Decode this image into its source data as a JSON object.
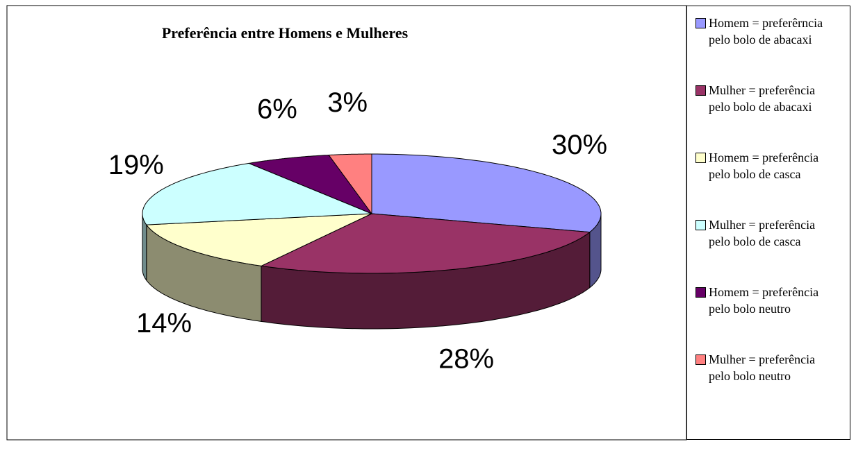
{
  "chart_data": {
    "type": "pie3d",
    "title": "Preferência entre Homens e Mulheres",
    "labels": [
      "Homem = preferêrncia pelo bolo de abacaxi",
      "Mulher = preferência pelo bolo de abacaxi",
      "Homem  = preferência pelo bolo de casca",
      "Mulher  = preferência pelo bolo de casca",
      "Homem = preferência pelo bolo neutro",
      "Mulher = preferência pelo bolo neutro"
    ],
    "values": [
      30,
      28,
      14,
      19,
      6,
      3
    ],
    "value_labels": [
      "30%",
      "28%",
      "14%",
      "19%",
      "6%",
      "3%"
    ],
    "colors": [
      "#9999ff",
      "#993366",
      "#ffffcc",
      "#ccffff",
      "#660066",
      "#ff8080"
    ],
    "legend": "right"
  }
}
